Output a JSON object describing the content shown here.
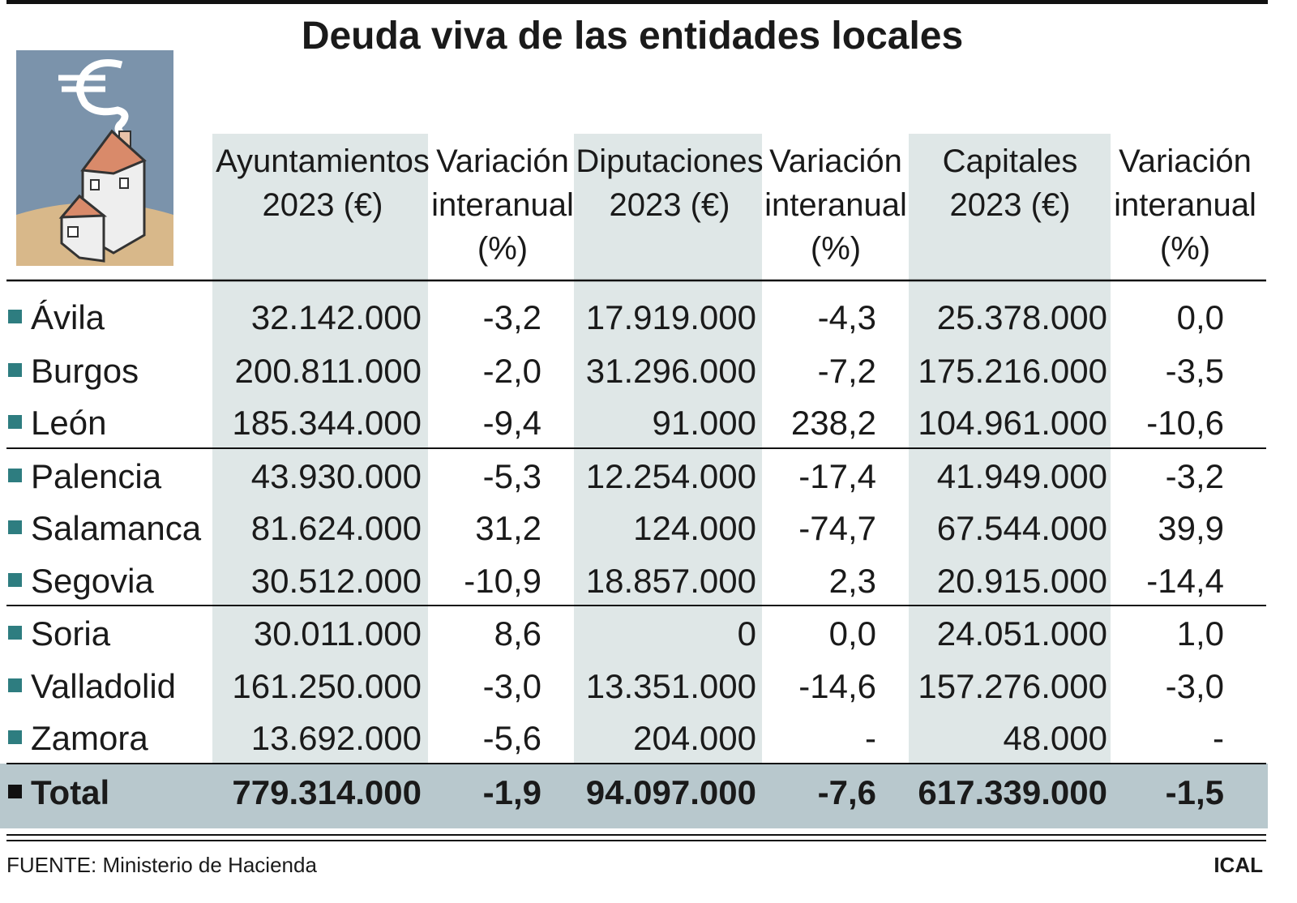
{
  "title": "Deuda viva de las entidades locales",
  "columns": [
    [
      "Ayuntamientos",
      "2023 (€)"
    ],
    [
      "Variación",
      "interanual",
      "(%)"
    ],
    [
      "Diputaciones",
      "2023 (€)"
    ],
    [
      "Variación",
      "interanual",
      "(%)"
    ],
    [
      "Capitales",
      "2023 (€)"
    ],
    [
      "Variación",
      "interanual",
      "(%)"
    ]
  ],
  "rows": [
    {
      "name": "Ávila",
      "cells": [
        "32.142.000",
        "-3,2",
        "17.919.000",
        "-4,3",
        "25.378.000",
        "0,0"
      ]
    },
    {
      "name": "Burgos",
      "cells": [
        "200.811.000",
        "-2,0",
        "31.296.000",
        "-7,2",
        "175.216.000",
        "-3,5"
      ]
    },
    {
      "name": "León",
      "cells": [
        "185.344.000",
        "-9,4",
        "91.000",
        "238,2",
        "104.961.000",
        "-10,6"
      ]
    },
    {
      "name": "Palencia",
      "cells": [
        "43.930.000",
        "-5,3",
        "12.254.000",
        "-17,4",
        "41.949.000",
        "-3,2"
      ]
    },
    {
      "name": "Salamanca",
      "cells": [
        "81.624.000",
        "31,2",
        "124.000",
        "-74,7",
        "67.544.000",
        "39,9"
      ]
    },
    {
      "name": "Segovia",
      "cells": [
        "30.512.000",
        "-10,9",
        "18.857.000",
        "2,3",
        "20.915.000",
        "-14,4"
      ]
    },
    {
      "name": "Soria",
      "cells": [
        "30.011.000",
        "8,6",
        "0",
        "0,0",
        "24.051.000",
        "1,0"
      ]
    },
    {
      "name": "Valladolid",
      "cells": [
        "161.250.000",
        "-3,0",
        "13.351.000",
        "-14,6",
        "157.276.000",
        "-3,0"
      ]
    },
    {
      "name": "Zamora",
      "cells": [
        "13.692.000",
        "-5,6",
        "204.000",
        "-",
        "48.000",
        "-"
      ]
    }
  ],
  "total": {
    "name": "Total",
    "cells": [
      "779.314.000",
      "-1,9",
      "94.097.000",
      "-7,6",
      "617.339.000",
      "-1,5"
    ]
  },
  "source": "FUENTE: Ministerio de Hacienda",
  "credit": "ICAL"
}
